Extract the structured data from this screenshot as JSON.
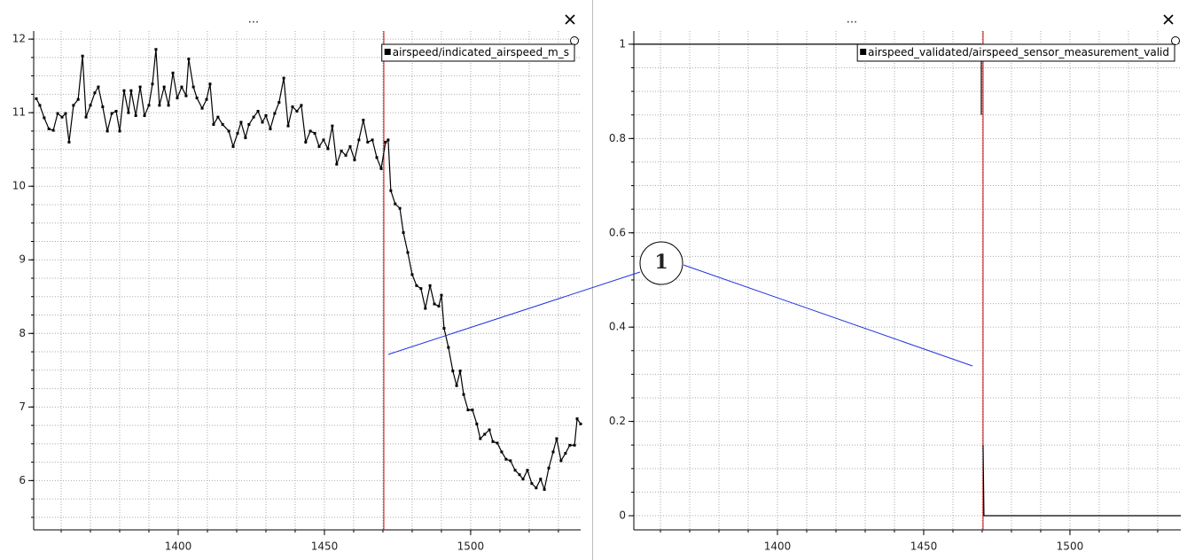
{
  "chart_data": [
    {
      "type": "line",
      "title": "...",
      "xlim": [
        1350.6,
        1537.6
      ],
      "ylim": [
        5.33,
        12.11
      ],
      "xticks": [
        1400,
        1450,
        1500
      ],
      "yticks": [
        6,
        7,
        8,
        9,
        10,
        11,
        12
      ],
      "xminorticks": [
        1360,
        1370,
        1380,
        1390,
        1400,
        1410,
        1420,
        1430,
        1440,
        1450,
        1460,
        1470,
        1480,
        1490,
        1500,
        1510,
        1520,
        1530
      ],
      "yminorticks": [
        5.5,
        5.75,
        6,
        6.25,
        6.5,
        6.75,
        7,
        7.25,
        7.5,
        7.75,
        8,
        8.25,
        8.5,
        8.75,
        9,
        9.25,
        9.5,
        9.75,
        10,
        10.25,
        10.5,
        10.75,
        11,
        11.25,
        11.5,
        11.75,
        12
      ],
      "grid": true,
      "markers": true,
      "cursor_x": 1470.3,
      "cursor_color": "#cc0000",
      "legend": "upper right",
      "x": [
        1351.5,
        1352.7,
        1354.2,
        1355.8,
        1357.3,
        1358.8,
        1360.3,
        1361.5,
        1362.7,
        1364.2,
        1365.8,
        1367.3,
        1368.5,
        1370,
        1371.5,
        1372.7,
        1374.2,
        1375.8,
        1377.3,
        1378.8,
        1380,
        1381.5,
        1383,
        1383.9,
        1385.5,
        1387,
        1388.5,
        1390,
        1391.2,
        1392.4,
        1393.6,
        1395.2,
        1396.7,
        1398.2,
        1399.7,
        1401.2,
        1402.7,
        1403.6,
        1405.2,
        1406.4,
        1408.2,
        1409.7,
        1410.9,
        1412.1,
        1413.6,
        1415.2,
        1417.3,
        1418.8,
        1420.3,
        1421.5,
        1423,
        1424.2,
        1425.8,
        1427.3,
        1428.8,
        1430,
        1431.5,
        1433,
        1434.5,
        1436.1,
        1437.6,
        1439.1,
        1440.6,
        1442.1,
        1443.6,
        1445.2,
        1446.7,
        1448.2,
        1449.7,
        1451.2,
        1452.7,
        1454.2,
        1455.8,
        1457.3,
        1458.8,
        1460.3,
        1461.8,
        1463.3,
        1464.8,
        1466.4,
        1467.9,
        1469.4,
        1470.9,
        1471.8,
        1472.7,
        1474.2,
        1475.8,
        1477,
        1478.5,
        1480,
        1481.5,
        1483,
        1484.5,
        1486.1,
        1487.6,
        1489.1,
        1490,
        1490.9,
        1492.4,
        1493.9,
        1495.2,
        1496.4,
        1497.6,
        1499.1,
        1500.6,
        1502.1,
        1503.3,
        1504.8,
        1506.4,
        1507.6,
        1509.1,
        1510.6,
        1512.1,
        1513.6,
        1515.2,
        1516.7,
        1517.9,
        1519.4,
        1520.9,
        1522.4,
        1523.9,
        1525.2,
        1526.7,
        1528.2,
        1529.4,
        1530.9,
        1532.4,
        1533.9,
        1535.5,
        1536.4,
        1537.6
      ],
      "series": [
        {
          "name": "airspeed/indicated_airspeed_m_s",
          "color": "#000000",
          "values": [
            11.19,
            11.1,
            10.93,
            10.78,
            10.76,
            10.99,
            10.94,
            10.99,
            10.6,
            11.1,
            11.18,
            11.77,
            10.94,
            11.1,
            11.27,
            11.35,
            11.08,
            10.75,
            10.99,
            11.02,
            10.75,
            11.3,
            11.0,
            11.3,
            10.96,
            11.35,
            10.96,
            11.1,
            11.39,
            11.86,
            11.1,
            11.35,
            11.1,
            11.54,
            11.2,
            11.35,
            11.23,
            11.73,
            11.35,
            11.2,
            11.06,
            11.18,
            11.39,
            10.84,
            10.94,
            10.84,
            10.75,
            10.54,
            10.72,
            10.87,
            10.66,
            10.84,
            10.94,
            11.02,
            10.87,
            10.96,
            10.78,
            10.99,
            11.14,
            11.47,
            10.82,
            11.08,
            11.02,
            11.1,
            10.6,
            10.75,
            10.72,
            10.54,
            10.63,
            10.51,
            10.82,
            10.3,
            10.48,
            10.42,
            10.54,
            10.36,
            10.63,
            10.9,
            10.6,
            10.63,
            10.39,
            10.24,
            10.6,
            10.63,
            9.94,
            9.76,
            9.7,
            9.37,
            9.1,
            8.8,
            8.65,
            8.61,
            8.34,
            8.65,
            8.4,
            8.37,
            8.52,
            8.07,
            7.81,
            7.49,
            7.29,
            7.49,
            7.17,
            6.96,
            6.96,
            6.77,
            6.57,
            6.63,
            6.69,
            6.53,
            6.51,
            6.39,
            6.29,
            6.27,
            6.14,
            6.08,
            6.02,
            6.14,
            5.96,
            5.9,
            6.02,
            5.88,
            6.17,
            6.39,
            6.57,
            6.27,
            6.37,
            6.48,
            6.48,
            6.84,
            6.77
          ]
        }
      ]
    },
    {
      "type": "line",
      "title": "...",
      "xlim": [
        1350.9,
        1537.9
      ],
      "ylim": [
        -0.03,
        1.028
      ],
      "xticks": [
        1400,
        1450,
        1500
      ],
      "yticks": [
        0,
        0.2,
        0.4,
        0.6,
        0.8,
        1
      ],
      "xminorticks": [
        1360,
        1370,
        1380,
        1390,
        1400,
        1410,
        1420,
        1430,
        1440,
        1450,
        1460,
        1470,
        1480,
        1490,
        1500,
        1510,
        1520,
        1530
      ],
      "yminorticks": [
        0,
        0.05,
        0.1,
        0.15,
        0.2,
        0.25,
        0.3,
        0.35,
        0.4,
        0.45,
        0.5,
        0.55,
        0.6,
        0.65,
        0.7,
        0.75,
        0.8,
        0.85,
        0.9,
        0.95,
        1
      ],
      "grid": true,
      "markers": false,
      "cursor_x": 1470.3,
      "cursor_color": "#cc0000",
      "legend": "upper right",
      "x": [
        1350.9,
        1469.7,
        1469.7,
        1470.3,
        1470.3,
        1470.6,
        1537.9
      ],
      "series": [
        {
          "name": "airspeed_validated/airspeed_sensor_measurement_valid",
          "color": "#000000",
          "values": [
            1,
            1,
            0.85,
            null,
            0.15,
            0,
            0
          ]
        }
      ]
    }
  ],
  "annotation": {
    "label": "1"
  }
}
